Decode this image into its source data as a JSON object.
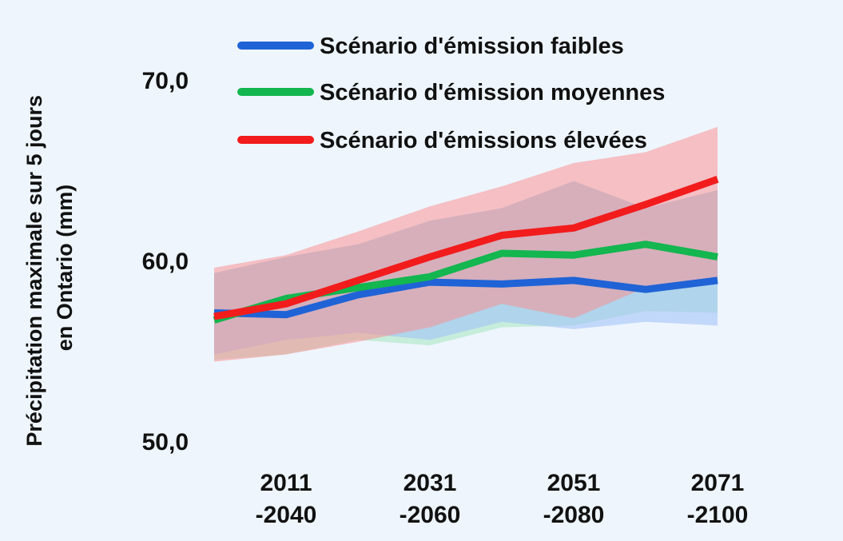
{
  "chart_data": {
    "type": "line",
    "ylabel_lines": [
      "Précipitation maximale sur 5 jours",
      "en Ontario (mm)"
    ],
    "xlabel": "",
    "ylim": [
      50,
      70
    ],
    "y_ticks": [
      "50,0",
      "60,0",
      "70,0"
    ],
    "y_tick_values": [
      50,
      60,
      70
    ],
    "x_range": [
      2001,
      2079
    ],
    "x_ticks": [
      {
        "value": 2011,
        "line1": "2011",
        "line2": "-2040"
      },
      {
        "value": 2031,
        "line1": "2031",
        "line2": "-2060"
      },
      {
        "value": 2051,
        "line1": "2051",
        "line2": "-2080"
      },
      {
        "value": 2071,
        "line1": "2071",
        "line2": "-2100"
      }
    ],
    "x": [
      2001,
      2011,
      2021,
      2031,
      2041,
      2051,
      2061,
      2071
    ],
    "series": [
      {
        "name": "Scénario d'émission faibles",
        "color": "#1f63d6",
        "band_color": "#9fc0f7",
        "values": [
          57.1,
          57.0,
          58.1,
          58.8,
          58.7,
          58.9,
          58.4,
          58.9
        ],
        "lower": [
          54.8,
          55.6,
          56.0,
          55.6,
          56.6,
          56.2,
          56.6,
          56.4
        ],
        "upper": [
          59.3,
          60.2,
          60.9,
          62.2,
          62.9,
          64.4,
          62.9,
          63.9
        ]
      },
      {
        "name": "Scénario d'émission moyennes",
        "color": "#13b64f",
        "band_color": "#a6e6bf",
        "values": [
          56.7,
          57.9,
          58.5,
          59.1,
          60.4,
          60.3,
          60.9,
          60.2
        ],
        "lower": [
          54.5,
          54.8,
          55.6,
          55.3,
          56.3,
          56.4,
          57.2,
          57.1
        ],
        "upper": [
          59.3,
          60.2,
          60.9,
          62.2,
          62.9,
          64.4,
          62.9,
          63.9
        ]
      },
      {
        "name": "Scénario d'émissions élevées",
        "color": "#f21c1c",
        "band_color": "#fc8a8c",
        "values": [
          56.9,
          57.6,
          58.9,
          60.2,
          61.4,
          61.8,
          63.1,
          64.5
        ],
        "lower": [
          54.4,
          54.8,
          55.5,
          56.3,
          57.6,
          56.8,
          58.5,
          58.7
        ],
        "upper": [
          59.6,
          60.3,
          61.6,
          63.0,
          64.1,
          65.4,
          66.0,
          67.4
        ]
      }
    ],
    "legend_position": "top"
  }
}
